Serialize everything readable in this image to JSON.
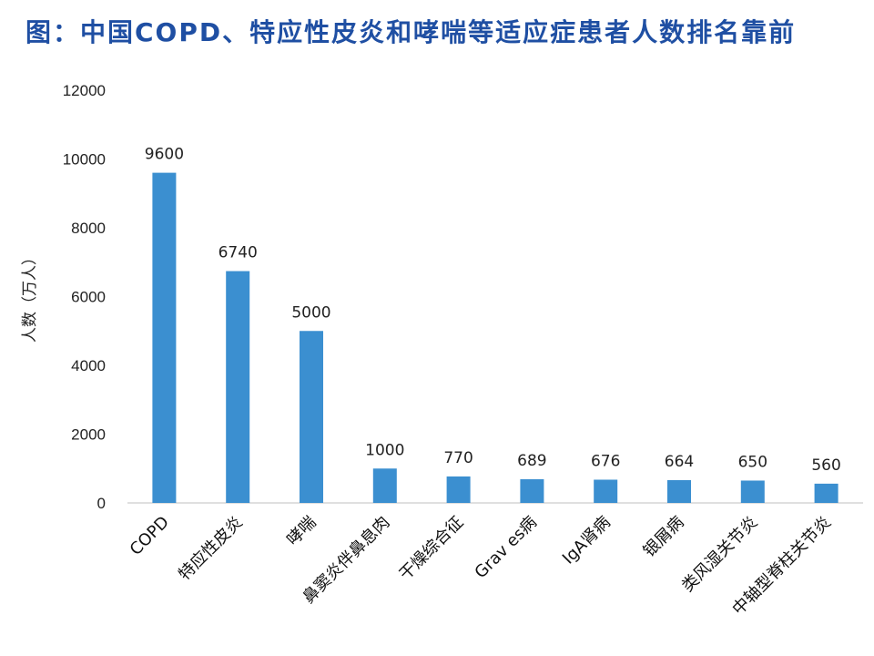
{
  "chart_data": {
    "type": "bar",
    "title": "图：中国COPD、特应性皮炎和哮喘等适应症患者人数排名靠前",
    "xlabel": "",
    "ylabel": "人数（万人）",
    "categories": [
      "COPD",
      "特应性皮炎",
      "哮喘",
      "鼻窦炎伴鼻息肉",
      "干燥综合征",
      "Grav es病",
      "IgA肾病",
      "银屑病",
      "类风湿关节炎",
      "中轴型脊柱关节炎"
    ],
    "values": [
      9600,
      6740,
      5000,
      1000,
      770,
      689,
      676,
      664,
      650,
      560
    ],
    "value_labels": [
      "9600",
      "6740",
      "5000",
      "1000",
      "770",
      "689",
      "676",
      "664",
      "650",
      "560"
    ],
    "yticks": [
      "0",
      "2000",
      "4000",
      "6000",
      "8000",
      "10000",
      "12000"
    ],
    "ylim": [
      0,
      12000
    ],
    "grid": false,
    "bar_color": "#3b8fd0"
  }
}
